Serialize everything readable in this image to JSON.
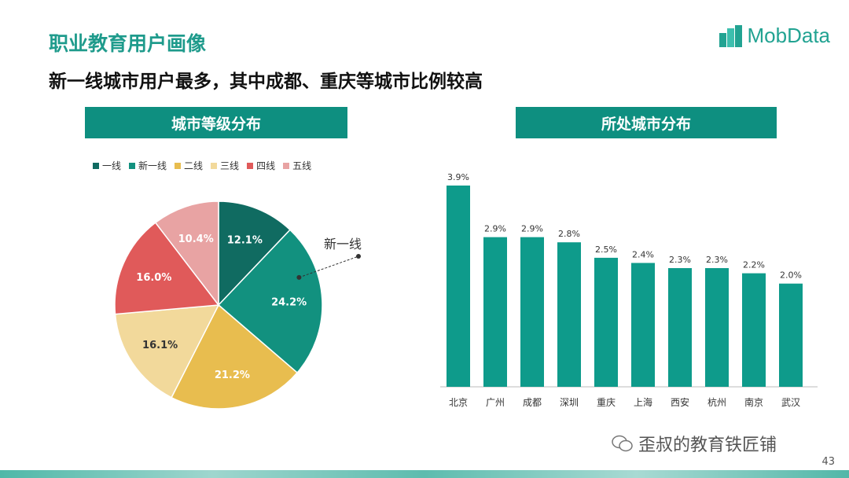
{
  "header": {
    "title": "职业教育用户画像",
    "subtitle": "新一线城市用户最多，其中成都、重庆等城市比例较高",
    "logo_text": "MobData"
  },
  "colors": {
    "accent": "#0e8f80",
    "title": "#1f9b8c",
    "bar": "#0e9b8b"
  },
  "chart_data": [
    {
      "type": "pie",
      "title": "城市等级分布",
      "legend_position": "top",
      "callout_label": "新一线",
      "categories": [
        "一线",
        "新一线",
        "二线",
        "三线",
        "四线",
        "五线"
      ],
      "values": [
        12.1,
        24.2,
        21.2,
        16.1,
        16.0,
        10.4
      ],
      "labels": [
        "12.1%",
        "24.2%",
        "21.2%",
        "16.1%",
        "16.0%",
        "10.4%"
      ],
      "colors": [
        "#106b61",
        "#12917f",
        "#e8bd4f",
        "#f2d99b",
        "#e05a5a",
        "#e8a3a3"
      ]
    },
    {
      "type": "bar",
      "title": "所处城市分布",
      "categories": [
        "北京",
        "广州",
        "成都",
        "深圳",
        "重庆",
        "上海",
        "西安",
        "杭州",
        "南京",
        "武汉"
      ],
      "values": [
        3.9,
        2.9,
        2.9,
        2.8,
        2.5,
        2.4,
        2.3,
        2.3,
        2.2,
        2.0
      ],
      "labels": [
        "3.9%",
        "2.9%",
        "2.9%",
        "2.8%",
        "2.5%",
        "2.4%",
        "2.3%",
        "2.3%",
        "2.2%",
        "2.0%"
      ],
      "ylim": [
        0,
        3.9
      ]
    }
  ],
  "footer": {
    "watermark": "歪叔的教育铁匠铺",
    "page_number": "43"
  }
}
